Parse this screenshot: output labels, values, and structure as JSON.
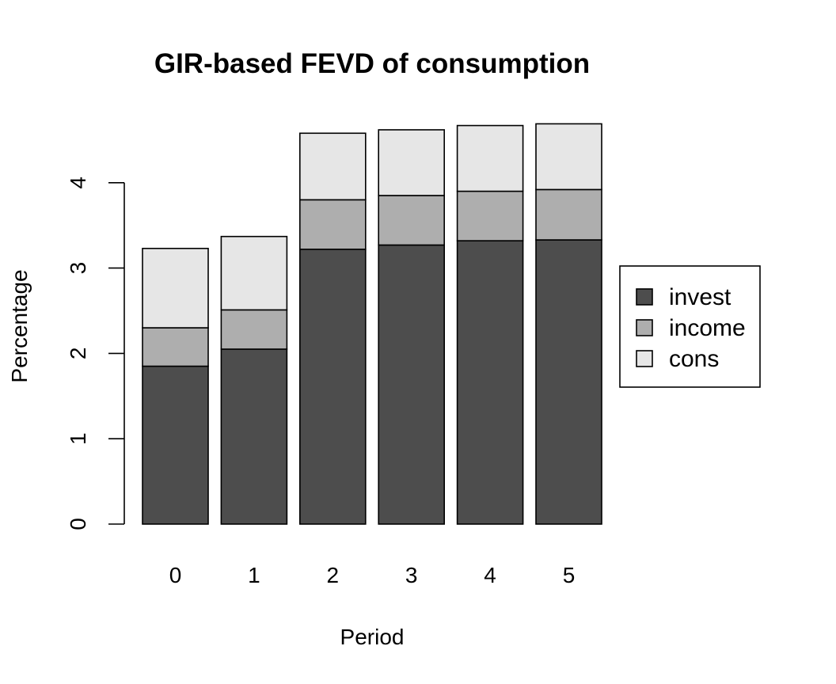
{
  "chart_data": {
    "type": "bar",
    "stacked": true,
    "title": "GIR-based FEVD of consumption",
    "xlabel": "Period",
    "ylabel": "Percentage",
    "categories": [
      "0",
      "1",
      "2",
      "3",
      "4",
      "5"
    ],
    "series": [
      {
        "name": "invest",
        "color": "#4d4d4d",
        "values": [
          1.85,
          2.05,
          3.22,
          3.27,
          3.32,
          3.33
        ]
      },
      {
        "name": "income",
        "color": "#aeaeae",
        "values": [
          0.45,
          0.46,
          0.58,
          0.58,
          0.58,
          0.59
        ]
      },
      {
        "name": "cons",
        "color": "#e6e6e6",
        "values": [
          0.93,
          0.86,
          0.78,
          0.77,
          0.77,
          0.77
        ]
      }
    ],
    "yticks": [
      0,
      1,
      2,
      3,
      4
    ],
    "ylim": [
      0,
      4.7
    ],
    "grid": false,
    "legend_position": "right"
  }
}
